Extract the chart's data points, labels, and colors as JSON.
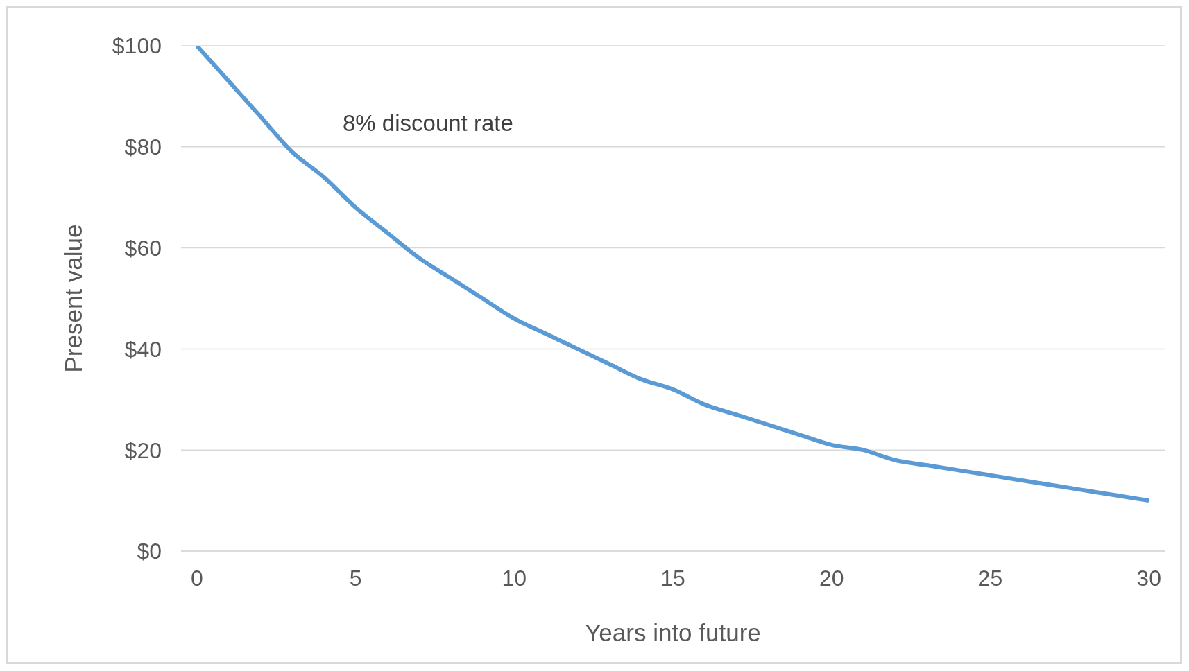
{
  "chart_data": {
    "type": "line",
    "xlabel": "Years into future",
    "ylabel": "Present value",
    "annotations": [
      "8% discount rate"
    ],
    "x": [
      0,
      1,
      2,
      3,
      4,
      5,
      6,
      7,
      8,
      9,
      10,
      11,
      12,
      13,
      14,
      15,
      16,
      17,
      18,
      19,
      20,
      21,
      22,
      23,
      24,
      25,
      26,
      27,
      28,
      29,
      30
    ],
    "series": [
      {
        "color": "#5b9bd5",
        "values": [
          100,
          93,
          86,
          79,
          74,
          68,
          63,
          58,
          54,
          50,
          46,
          43,
          40,
          37,
          34,
          32,
          29,
          27,
          25,
          23,
          21,
          20,
          18,
          17,
          16,
          15,
          14,
          13,
          12,
          11,
          10
        ]
      }
    ],
    "xlim": [
      -0.5,
      30.5
    ],
    "xticks": [
      0,
      5,
      10,
      15,
      20,
      25,
      30
    ],
    "ylim": [
      0,
      100
    ],
    "yticks": [
      {
        "value": 0,
        "label": "$0"
      },
      {
        "value": 20,
        "label": "$20"
      },
      {
        "value": 40,
        "label": "$40"
      },
      {
        "value": 60,
        "label": "$60"
      },
      {
        "value": 80,
        "label": "$80"
      },
      {
        "value": 100,
        "label": "$100"
      }
    ],
    "grid": "y",
    "marker": "none",
    "line_style": "solid"
  }
}
